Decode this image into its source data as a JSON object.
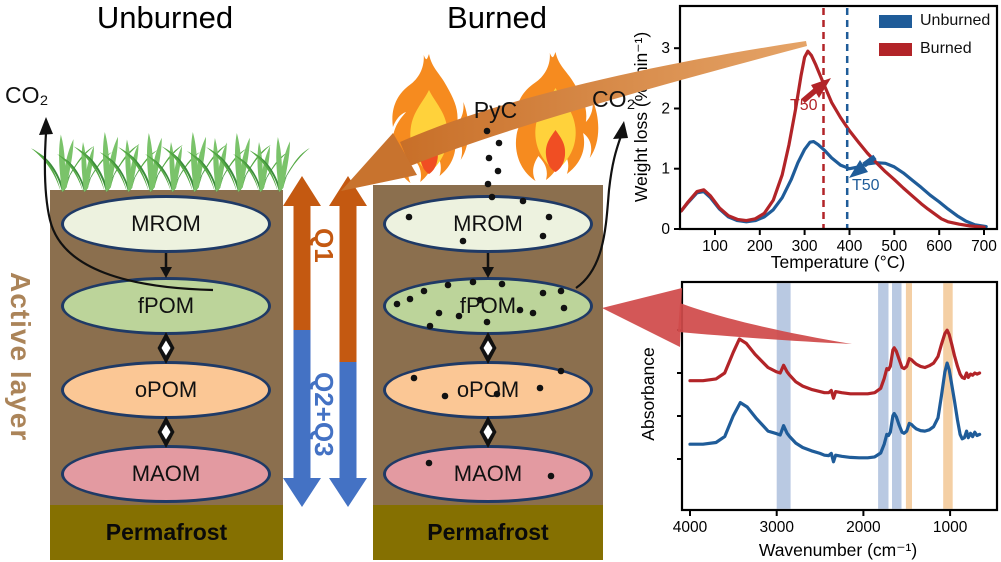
{
  "titles": {
    "unburned": "Unburned",
    "burned": "Burned"
  },
  "labels": {
    "co2": "CO₂",
    "pyc": "PyC",
    "active_layer": "Active layer",
    "q1": "Q1",
    "q2_q3": "Q2+Q3",
    "permafrost": "Permafrost"
  },
  "pools": [
    "MROM",
    "fPOM",
    "oPOM",
    "MAOM"
  ],
  "colors": {
    "unburned_blue": "#1f5c99",
    "burned_red": "#b22428",
    "q1_orange": "#c45911",
    "q23_blue": "#4472c4",
    "soil_brown": "#8b6f4e",
    "permafrost_olive": "#857001",
    "active_layer_tan": "#ab8459",
    "mrom_fill": "#edf2df",
    "fpom_fill": "#bcd49a",
    "opom_fill": "#fbc795",
    "maom_fill": "#e39aa1",
    "oval_border": "#1f3a66",
    "band_blue": "#b9c9e2",
    "band_orange": "#f4cfa4",
    "swoosh_orange": "#cf7a33",
    "swoosh_red": "#d04a4a",
    "grass_green": "#55aa44",
    "grass_green_light": "#7ac36a",
    "grass_green_dark": "#3c8d3c",
    "flame_orange": "#f68b1f",
    "flame_yellow": "#ffd23b",
    "flame_red": "#f04e23"
  },
  "chart_data": [
    {
      "type": "line",
      "xlabel": "Temperature (°C)",
      "ylabel": "Weight loss (% min⁻¹)",
      "xlim": [
        22,
        729
      ],
      "ylim": [
        0,
        3.7
      ],
      "xticks": [
        100,
        200,
        300,
        400,
        500,
        600,
        700
      ],
      "yticks": [
        0,
        1,
        2,
        3
      ],
      "legend_position": "top-right",
      "series": [
        {
          "name": "Unburned",
          "color": "#1f5c99",
          "points": [
            [
              25,
              0.3
            ],
            [
              40,
              0.44
            ],
            [
              60,
              0.6
            ],
            [
              75,
              0.62
            ],
            [
              90,
              0.52
            ],
            [
              110,
              0.33
            ],
            [
              130,
              0.2
            ],
            [
              150,
              0.14
            ],
            [
              170,
              0.12
            ],
            [
              190,
              0.14
            ],
            [
              210,
              0.2
            ],
            [
              230,
              0.32
            ],
            [
              250,
              0.52
            ],
            [
              270,
              0.82
            ],
            [
              285,
              1.1
            ],
            [
              300,
              1.32
            ],
            [
              312,
              1.44
            ],
            [
              320,
              1.45
            ],
            [
              330,
              1.4
            ],
            [
              345,
              1.3
            ],
            [
              360,
              1.18
            ],
            [
              380,
              1.06
            ],
            [
              400,
              1.0
            ],
            [
              420,
              1.03
            ],
            [
              440,
              1.08
            ],
            [
              460,
              1.1
            ],
            [
              480,
              1.09
            ],
            [
              500,
              1.03
            ],
            [
              520,
              0.93
            ],
            [
              540,
              0.81
            ],
            [
              560,
              0.69
            ],
            [
              580,
              0.56
            ],
            [
              600,
              0.45
            ],
            [
              620,
              0.33
            ],
            [
              640,
              0.22
            ],
            [
              660,
              0.13
            ],
            [
              680,
              0.07
            ],
            [
              705,
              0.04
            ]
          ]
        },
        {
          "name": "Burned",
          "color": "#b22428",
          "points": [
            [
              25,
              0.3
            ],
            [
              40,
              0.45
            ],
            [
              60,
              0.62
            ],
            [
              75,
              0.65
            ],
            [
              90,
              0.55
            ],
            [
              110,
              0.35
            ],
            [
              130,
              0.22
            ],
            [
              150,
              0.16
            ],
            [
              170,
              0.14
            ],
            [
              190,
              0.17
            ],
            [
              210,
              0.26
            ],
            [
              230,
              0.48
            ],
            [
              250,
              0.9
            ],
            [
              265,
              1.4
            ],
            [
              280,
              2.0
            ],
            [
              292,
              2.55
            ],
            [
              300,
              2.85
            ],
            [
              307,
              2.95
            ],
            [
              315,
              2.88
            ],
            [
              325,
              2.72
            ],
            [
              340,
              2.45
            ],
            [
              360,
              2.1
            ],
            [
              380,
              1.85
            ],
            [
              400,
              1.63
            ],
            [
              420,
              1.44
            ],
            [
              440,
              1.26
            ],
            [
              460,
              1.1
            ],
            [
              480,
              0.95
            ],
            [
              500,
              0.82
            ],
            [
              520,
              0.68
            ],
            [
              540,
              0.55
            ],
            [
              560,
              0.42
            ],
            [
              575,
              0.33
            ],
            [
              590,
              0.25
            ],
            [
              605,
              0.17
            ],
            [
              620,
              0.12
            ],
            [
              645,
              0.08
            ],
            [
              670,
              0.05
            ],
            [
              700,
              0.03
            ]
          ]
        }
      ],
      "t50_markers": [
        {
          "label": "T50",
          "x": 342,
          "color": "#b22428",
          "series": "Burned"
        },
        {
          "label": "T50",
          "x": 395,
          "color": "#1f5c99",
          "series": "Unburned"
        }
      ]
    },
    {
      "type": "line",
      "xlabel": "Wavenumber (cm⁻¹)",
      "ylabel": "Absorbance",
      "x_reversed": true,
      "xlim": [
        4092,
        459
      ],
      "ylim": [
        0,
        10.4
      ],
      "xticks": [
        4000,
        3000,
        2000,
        1000
      ],
      "highlight_bands": [
        {
          "from": 3000,
          "to": 2840,
          "color": "#b9c9e2"
        },
        {
          "from": 1830,
          "to": 1710,
          "color": "#b9c9e2"
        },
        {
          "from": 1670,
          "to": 1560,
          "color": "#b9c9e2"
        },
        {
          "from": 1510,
          "to": 1440,
          "color": "#f4cfa4"
        },
        {
          "from": 1080,
          "to": 970,
          "color": "#f4cfa4"
        }
      ],
      "series": [
        {
          "name": "Burned",
          "color": "#b22428",
          "points": [
            [
              4000,
              5.9
            ],
            [
              3850,
              5.9
            ],
            [
              3700,
              5.98
            ],
            [
              3600,
              6.25
            ],
            [
              3500,
              7.2
            ],
            [
              3430,
              7.8
            ],
            [
              3350,
              7.6
            ],
            [
              3250,
              7.1
            ],
            [
              3100,
              6.5
            ],
            [
              3000,
              6.3
            ],
            [
              2960,
              6.25
            ],
            [
              2920,
              6.6
            ],
            [
              2880,
              6.3
            ],
            [
              2850,
              6.15
            ],
            [
              2780,
              5.85
            ],
            [
              2700,
              5.65
            ],
            [
              2600,
              5.5
            ],
            [
              2500,
              5.4
            ],
            [
              2450,
              5.35
            ],
            [
              2400,
              5.35
            ],
            [
              2370,
              5.45
            ],
            [
              2345,
              5.1
            ],
            [
              2320,
              5.4
            ],
            [
              2250,
              5.35
            ],
            [
              2150,
              5.3
            ],
            [
              2050,
              5.3
            ],
            [
              1950,
              5.3
            ],
            [
              1870,
              5.35
            ],
            [
              1800,
              5.55
            ],
            [
              1760,
              6.0
            ],
            [
              1730,
              6.45
            ],
            [
              1710,
              6.4
            ],
            [
              1690,
              6.55
            ],
            [
              1660,
              7.3
            ],
            [
              1645,
              7.4
            ],
            [
              1620,
              7.25
            ],
            [
              1590,
              6.9
            ],
            [
              1555,
              6.5
            ],
            [
              1530,
              6.45
            ],
            [
              1500,
              6.55
            ],
            [
              1470,
              6.9
            ],
            [
              1445,
              6.85
            ],
            [
              1420,
              6.75
            ],
            [
              1390,
              6.65
            ],
            [
              1340,
              6.55
            ],
            [
              1290,
              6.5
            ],
            [
              1240,
              6.58
            ],
            [
              1190,
              6.7
            ],
            [
              1140,
              7.0
            ],
            [
              1100,
              7.55
            ],
            [
              1060,
              8.05
            ],
            [
              1035,
              8.2
            ],
            [
              1010,
              8.0
            ],
            [
              980,
              7.55
            ],
            [
              950,
              7.05
            ],
            [
              915,
              6.55
            ],
            [
              885,
              6.2
            ],
            [
              860,
              6.05
            ],
            [
              835,
              6.0
            ],
            [
              810,
              6.25
            ],
            [
              790,
              6.05
            ],
            [
              765,
              6.2
            ],
            [
              740,
              6.15
            ],
            [
              715,
              6.25
            ],
            [
              690,
              6.2
            ],
            [
              660,
              6.25
            ]
          ]
        },
        {
          "name": "Unburned",
          "color": "#1f5c99",
          "points": [
            [
              4000,
              3.0
            ],
            [
              3850,
              3.0
            ],
            [
              3700,
              3.08
            ],
            [
              3600,
              3.35
            ],
            [
              3500,
              4.3
            ],
            [
              3420,
              4.9
            ],
            [
              3340,
              4.7
            ],
            [
              3240,
              4.2
            ],
            [
              3100,
              3.6
            ],
            [
              3000,
              3.48
            ],
            [
              2960,
              3.42
            ],
            [
              2920,
              3.85
            ],
            [
              2880,
              3.5
            ],
            [
              2850,
              3.35
            ],
            [
              2780,
              3.05
            ],
            [
              2700,
              2.85
            ],
            [
              2600,
              2.7
            ],
            [
              2500,
              2.58
            ],
            [
              2450,
              2.5
            ],
            [
              2400,
              2.48
            ],
            [
              2370,
              2.58
            ],
            [
              2345,
              2.2
            ],
            [
              2320,
              2.5
            ],
            [
              2250,
              2.45
            ],
            [
              2150,
              2.4
            ],
            [
              2050,
              2.38
            ],
            [
              1950,
              2.38
            ],
            [
              1870,
              2.42
            ],
            [
              1800,
              2.6
            ],
            [
              1760,
              3.0
            ],
            [
              1730,
              3.45
            ],
            [
              1710,
              3.4
            ],
            [
              1690,
              3.55
            ],
            [
              1660,
              4.3
            ],
            [
              1645,
              4.4
            ],
            [
              1620,
              4.25
            ],
            [
              1590,
              3.9
            ],
            [
              1555,
              3.55
            ],
            [
              1530,
              3.5
            ],
            [
              1500,
              3.6
            ],
            [
              1470,
              3.95
            ],
            [
              1445,
              3.9
            ],
            [
              1420,
              3.8
            ],
            [
              1390,
              3.7
            ],
            [
              1340,
              3.62
            ],
            [
              1290,
              3.6
            ],
            [
              1240,
              3.66
            ],
            [
              1190,
              3.8
            ],
            [
              1140,
              4.2
            ],
            [
              1100,
              5.2
            ],
            [
              1060,
              6.3
            ],
            [
              1035,
              6.7
            ],
            [
              1010,
              6.4
            ],
            [
              980,
              5.7
            ],
            [
              950,
              5.0
            ],
            [
              915,
              4.1
            ],
            [
              885,
              3.45
            ],
            [
              860,
              3.25
            ],
            [
              835,
              3.3
            ],
            [
              810,
              3.6
            ],
            [
              790,
              3.3
            ],
            [
              765,
              3.5
            ],
            [
              740,
              3.35
            ],
            [
              715,
              3.55
            ],
            [
              690,
              3.4
            ],
            [
              660,
              3.45
            ]
          ]
        }
      ]
    }
  ]
}
